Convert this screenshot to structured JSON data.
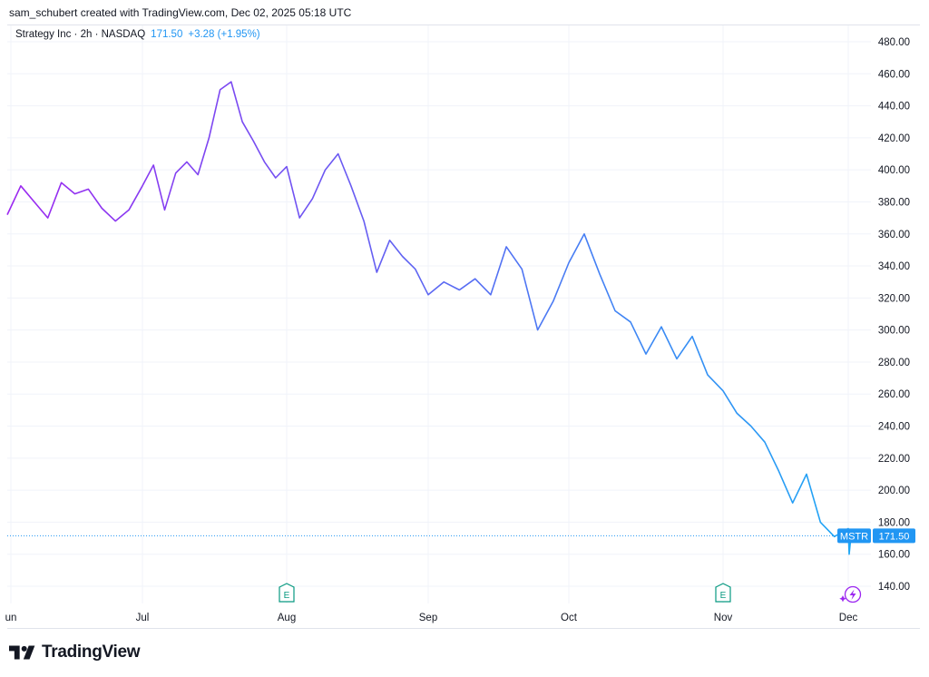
{
  "header": {
    "attribution": "sam_schubert created with TradingView.com, Dec 02, 2025 05:18 UTC"
  },
  "legend": {
    "symbol": "Strategy Inc · 2h · NASDAQ",
    "price": "171.50",
    "change": "+3.28 (+1.95%)"
  },
  "footer": {
    "brand": "TradingView"
  },
  "colors": {
    "price_start": "#9c27f0",
    "price_end": "#1ea7f5",
    "last_price_label": "#2196f3",
    "event_marker": "#089981"
  },
  "chart_data": {
    "type": "line",
    "title": "",
    "xlabel": "",
    "ylabel": "",
    "series": [
      {
        "name": "MSTR",
        "points": [
          [
            "Jun",
            372
          ],
          [
            "Jun",
            390
          ],
          [
            "Jun",
            380
          ],
          [
            "Jun",
            370
          ],
          [
            "Jun",
            392
          ],
          [
            "Jun",
            385
          ],
          [
            "Jun",
            388
          ],
          [
            "Jun",
            376
          ],
          [
            "Jun",
            368
          ],
          [
            "Jun",
            375
          ],
          [
            "Jul",
            390
          ],
          [
            "Jul",
            403
          ],
          [
            "Jul",
            375
          ],
          [
            "Jul",
            398
          ],
          [
            "Jul",
            405
          ],
          [
            "Jul",
            397
          ],
          [
            "Jul",
            420
          ],
          [
            "Jul",
            450
          ],
          [
            "Jul",
            455
          ],
          [
            "Jul",
            430
          ],
          [
            "Jul",
            418
          ],
          [
            "Jul",
            405
          ],
          [
            "Jul",
            395
          ],
          [
            "Aug",
            402
          ],
          [
            "Aug",
            370
          ],
          [
            "Aug",
            382
          ],
          [
            "Aug",
            400
          ],
          [
            "Aug",
            410
          ],
          [
            "Aug",
            390
          ],
          [
            "Aug",
            368
          ],
          [
            "Aug",
            336
          ],
          [
            "Aug",
            356
          ],
          [
            "Aug",
            346
          ],
          [
            "Aug",
            338
          ],
          [
            "Sep",
            322
          ],
          [
            "Sep",
            330
          ],
          [
            "Sep",
            325
          ],
          [
            "Sep",
            332
          ],
          [
            "Sep",
            322
          ],
          [
            "Sep",
            352
          ],
          [
            "Sep",
            338
          ],
          [
            "Sep",
            300
          ],
          [
            "Sep",
            318
          ],
          [
            "Oct",
            342
          ],
          [
            "Oct",
            360
          ],
          [
            "Oct",
            335
          ],
          [
            "Oct",
            312
          ],
          [
            "Oct",
            305
          ],
          [
            "Oct",
            285
          ],
          [
            "Oct",
            302
          ],
          [
            "Oct",
            282
          ],
          [
            "Oct",
            296
          ],
          [
            "Oct",
            272
          ],
          [
            "Nov",
            262
          ],
          [
            "Nov",
            248
          ],
          [
            "Nov",
            240
          ],
          [
            "Nov",
            230
          ],
          [
            "Nov",
            212
          ],
          [
            "Nov",
            192
          ],
          [
            "Nov",
            210
          ],
          [
            "Nov",
            180
          ],
          [
            "Nov",
            171
          ],
          [
            "Dec",
            176
          ],
          [
            "Dec",
            160
          ],
          [
            "Dec",
            171.5
          ]
        ]
      }
    ],
    "x_tick_labels": [
      "un",
      "Jul",
      "Aug",
      "Sep",
      "Oct",
      "Nov",
      "Dec"
    ],
    "y_tick_labels": [
      "480.00",
      "460.00",
      "440.00",
      "420.00",
      "400.00",
      "380.00",
      "360.00",
      "340.00",
      "320.00",
      "300.00",
      "280.00",
      "260.00",
      "240.00",
      "220.00",
      "200.00",
      "180.00",
      "160.00",
      "140.00"
    ],
    "ylim": [
      140,
      480
    ],
    "last_price": {
      "symbol": "MSTR",
      "value": "171.50"
    },
    "event_markers": [
      {
        "label": "E",
        "near": "Aug"
      },
      {
        "label": "E",
        "near": "Nov"
      }
    ],
    "grid": true
  }
}
